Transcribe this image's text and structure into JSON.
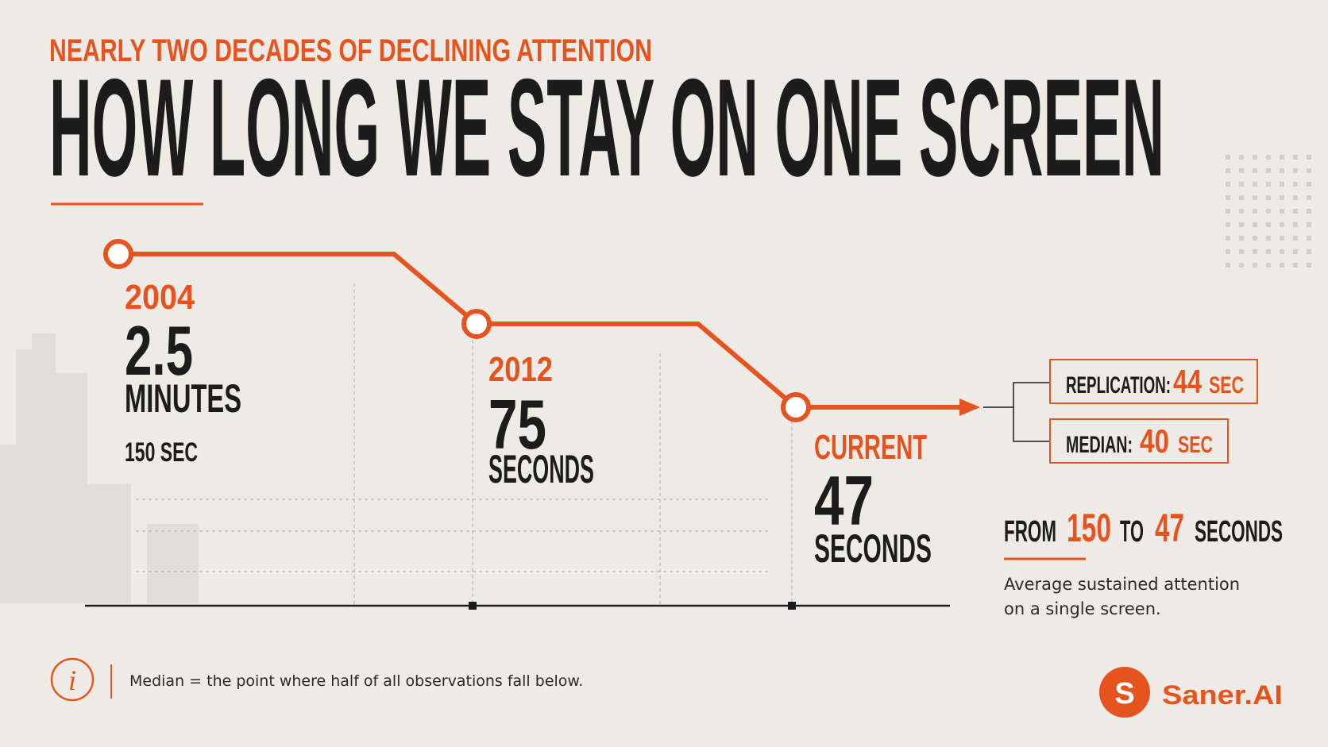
{
  "header": {
    "kicker": "NEARLY TWO DECADES OF DECLINING ATTENTION",
    "title": "HOW LONG WE STAY ON ONE SCREEN"
  },
  "milestones": [
    {
      "label": "2004",
      "value": "2.5",
      "unit": "MINUTES",
      "note": "150 SEC"
    },
    {
      "label": "2012",
      "value": "75",
      "unit": "SECONDS"
    },
    {
      "label": "CURRENT",
      "value": "47",
      "unit": "SECONDS"
    }
  ],
  "callouts": [
    {
      "label": "REPLICATION:",
      "value": "44",
      "unit": "SEC"
    },
    {
      "label": "MEDIAN:",
      "value": "40",
      "unit": "SEC"
    }
  ],
  "summary": {
    "parts": [
      "FROM",
      "150",
      "TO",
      "47",
      "SECONDS"
    ],
    "description": [
      "Average sustained attention",
      "on a single screen."
    ]
  },
  "footnote": {
    "icon": "i",
    "term": "Median",
    "equals": "=",
    "text": "the point where half of all observations fall below."
  },
  "brand": {
    "logo": "S",
    "name": "Saner.AI"
  }
}
